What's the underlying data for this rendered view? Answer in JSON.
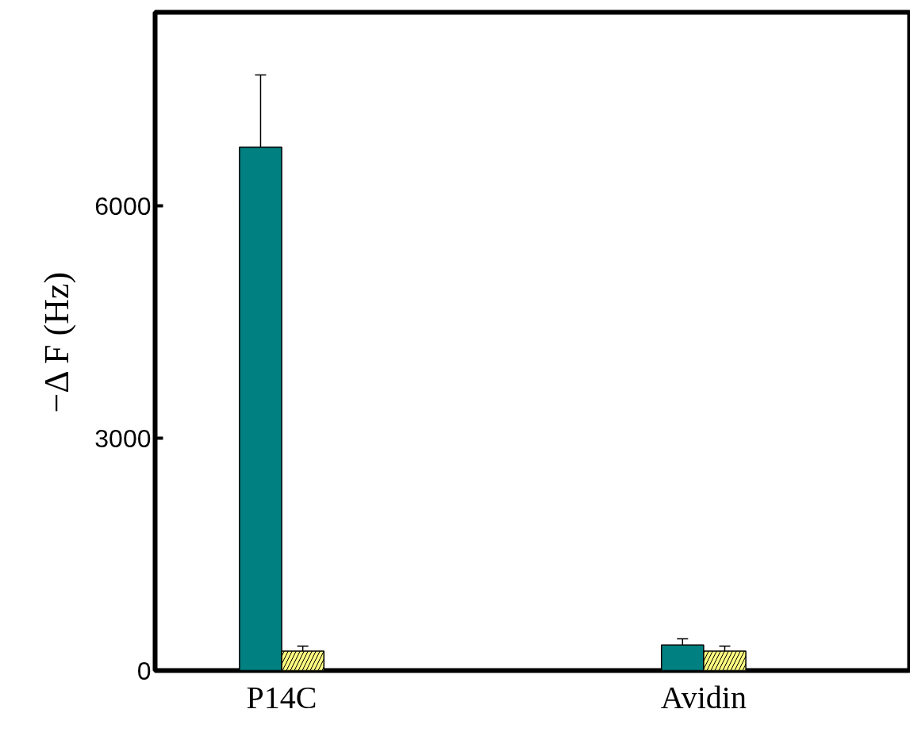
{
  "chart_data": {
    "type": "bar",
    "ylabel": "−Δ F (Hz)",
    "categories": [
      "P14C",
      "Avidin"
    ],
    "series": [
      {
        "color": "#008080",
        "values": [
          6760,
          330
        ],
        "errors": [
          930,
          80
        ]
      },
      {
        "color": "#ffff80",
        "values": [
          250,
          250
        ],
        "errors": [
          65,
          65
        ]
      }
    ],
    "ylim": [
      0,
      8500
    ],
    "yticks": [
      0,
      3000,
      6000
    ]
  }
}
